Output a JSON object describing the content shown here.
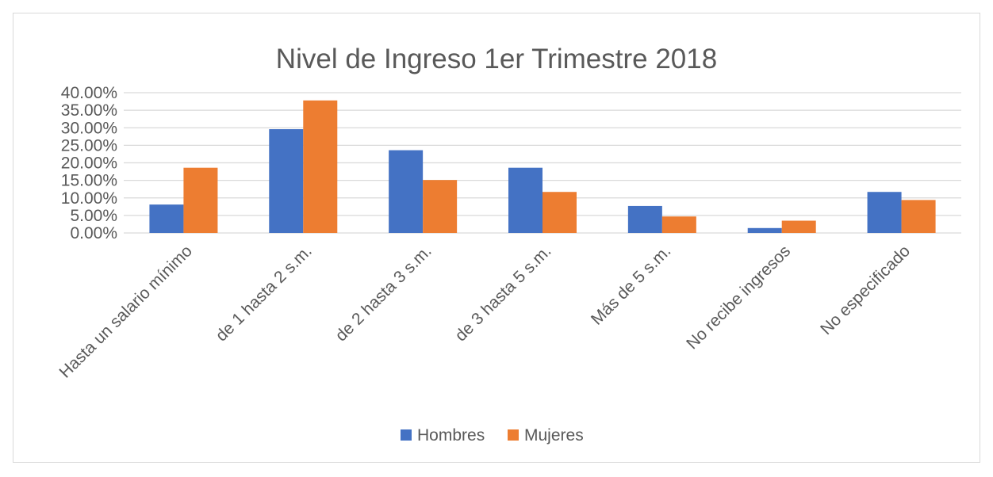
{
  "chart_data": {
    "type": "bar",
    "title": "Nivel de Ingreso 1er Trimestre 2018",
    "categories": [
      "Hasta un salario mínimo",
      "de 1 hasta 2 s.m.",
      "de 2 hasta 3 s.m.",
      "de 3 hasta 5 s.m.",
      "Más de 5 s.m.",
      "No recibe ingresos",
      "No especificado"
    ],
    "series": [
      {
        "name": "Hombres",
        "color": "#4472c4",
        "values": [
          8.1,
          29.6,
          23.6,
          18.6,
          7.7,
          1.4,
          11.7
        ]
      },
      {
        "name": "Mujeres",
        "color": "#ed7d31",
        "values": [
          18.6,
          37.8,
          15.1,
          11.7,
          4.7,
          3.5,
          9.4
        ]
      }
    ],
    "yticks": [
      "0.00%",
      "5.00%",
      "10.00%",
      "15.00%",
      "20.00%",
      "25.00%",
      "30.00%",
      "35.00%",
      "40.00%"
    ],
    "ylim": [
      0,
      40
    ],
    "grid": true,
    "legend_position": "bottom",
    "gridline_color": "#d9d9d9",
    "text_color": "#595959"
  }
}
